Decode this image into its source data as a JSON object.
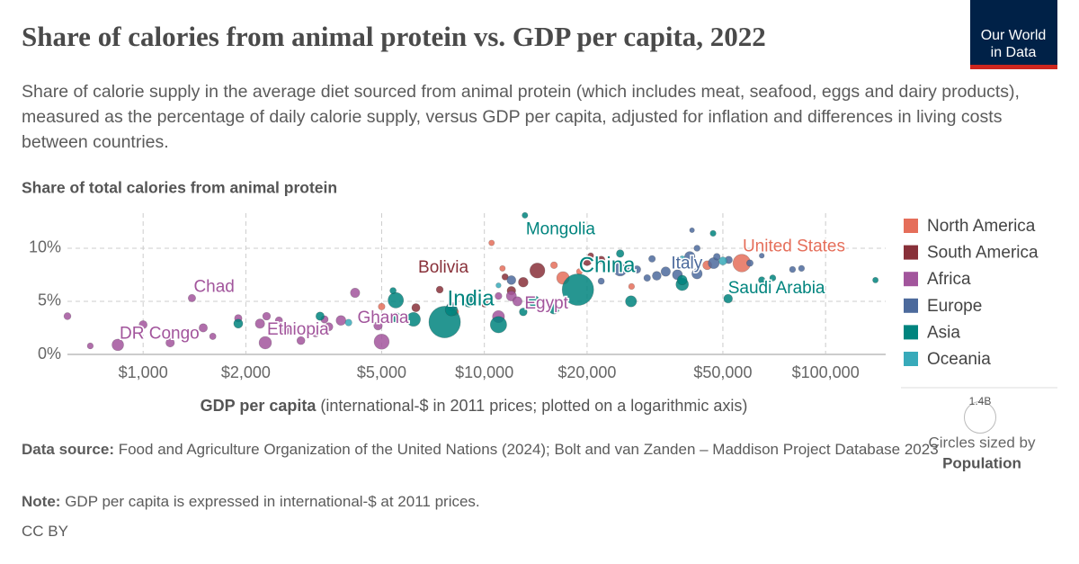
{
  "header": {
    "title": "Share of calories from animal protein vs. GDP per capita, 2022",
    "subtitle": "Share of calorie supply in the average diet sourced from animal protein (which includes meat, seafood, eggs and dairy products), measured as the percentage of daily calorie supply, versus GDP per capita, adjusted for inflation and differences in living costs between countries.",
    "logo": [
      "Our World",
      "in Data"
    ]
  },
  "chart_data": {
    "type": "scatter",
    "y_label": "Share of total calories from animal protein",
    "x_label": "GDP per capita",
    "x_label_note": "(international-$ in 2011 prices; plotted on a logarithmic axis)",
    "x_log": true,
    "grid": true,
    "legend_position": "right",
    "xlim": [
      600,
      150000
    ],
    "ylim": [
      0,
      13.3
    ],
    "xticks": [
      {
        "value": 1000,
        "label": "$1,000"
      },
      {
        "value": 2000,
        "label": "$2,000"
      },
      {
        "value": 5000,
        "label": "$5,000"
      },
      {
        "value": 10000,
        "label": "$10,000"
      },
      {
        "value": 20000,
        "label": "$20,000"
      },
      {
        "value": 50000,
        "label": "$50,000"
      },
      {
        "value": 100000,
        "label": "$100,000"
      }
    ],
    "yticks": [
      {
        "value": 0,
        "label": "0%"
      },
      {
        "value": 5,
        "label": "5%"
      },
      {
        "value": 10,
        "label": "10%"
      }
    ],
    "size_legend": {
      "value": 1400,
      "label": "1.4B"
    },
    "size_caption": "Circles sized by",
    "size_variable": "Population",
    "series": [
      {
        "name": "North America",
        "color": "#e56e5a",
        "x": [
          56800,
          45000,
          17000,
          19000,
          27000,
          10500,
          16000,
          5000,
          8200,
          11300
        ],
        "values": [
          8.6,
          8.4,
          7.2,
          7.8,
          6.4,
          10.5,
          8.4,
          4.5,
          4.0,
          8.1
        ],
        "sizes": [
          335,
          39,
          128,
          5,
          4.4,
          2.8,
          11,
          10,
          17,
          3
        ],
        "labels": [
          "United States",
          null,
          null,
          null,
          null,
          null,
          null,
          null,
          null,
          null
        ]
      },
      {
        "name": "South America",
        "color": "#883039",
        "x": [
          7400,
          14300,
          20000,
          13000,
          12000,
          22000,
          20500,
          11500,
          10000,
          6300
        ],
        "values": [
          6.1,
          7.9,
          8.8,
          6.8,
          6.0,
          8.9,
          9.3,
          7.3,
          4.8,
          4.4
        ],
        "sizes": [
          12,
          215,
          46,
          52,
          34,
          19,
          3.4,
          7,
          18,
          28
        ],
        "labels": [
          "Bolivia",
          null,
          null,
          null,
          null,
          null,
          null,
          null,
          null,
          null
        ]
      },
      {
        "name": "Africa",
        "color": "#a2559c",
        "x": [
          1390,
          4880,
          2280,
          843,
          11000,
          5000,
          3800,
          2600,
          2200,
          1500,
          1200,
          1000,
          2300,
          4180,
          2500,
          12000,
          8000,
          12500,
          11000,
          600,
          700,
          1600,
          3200,
          3400,
          3500,
          1900,
          2900
        ],
        "values": [
          5.3,
          2.7,
          1.1,
          0.9,
          3.56,
          1.2,
          3.2,
          2.3,
          2.9,
          2.5,
          1.1,
          2.8,
          3.6,
          5.8,
          3.2,
          5.5,
          4.5,
          5.0,
          5.5,
          3.6,
          0.8,
          1.7,
          2.0,
          3.3,
          2.6,
          3.4,
          1.3
        ],
        "sizes": [
          18,
          33,
          123,
          100,
          111,
          218,
          54,
          65,
          47,
          30,
          33,
          26,
          22,
          47,
          16,
          60,
          37,
          45,
          12,
          13,
          5,
          8,
          20,
          17,
          28,
          18,
          25
        ],
        "labels": [
          "Chad",
          "Ghana",
          "Ethiopia",
          "DR Congo",
          "Egypt",
          null,
          null,
          null,
          null,
          null,
          null,
          null,
          null,
          null,
          null,
          null,
          null,
          null,
          null,
          null,
          null,
          null,
          null,
          null,
          null,
          null,
          null
        ]
      },
      {
        "name": "Europe",
        "color": "#4c6a9c",
        "x": [
          36800,
          40000,
          47000,
          42000,
          34000,
          52000,
          80000,
          60000,
          25000,
          12000,
          32000,
          28000,
          26000,
          31000,
          48000,
          42000,
          85000,
          40600,
          22000,
          30000,
          65000
        ],
        "values": [
          7.5,
          9.2,
          8.6,
          7.6,
          7.8,
          8.9,
          8.0,
          8.6,
          8.0,
          7.0,
          7.4,
          8.0,
          8.2,
          9.0,
          9.2,
          10.0,
          8.1,
          11.7,
          6.9,
          7.2,
          9.3
        ],
        "sizes": [
          59,
          68,
          83,
          67,
          47,
          17,
          5.5,
          9,
          144,
          38,
          38,
          19,
          10,
          10,
          10,
          5.5,
          5,
          0.4,
          7,
          10,
          0.7
        ],
        "labels": [
          "Italy",
          null,
          null,
          null,
          null,
          null,
          null,
          null,
          null,
          null,
          null,
          null,
          null,
          null,
          null,
          null,
          null,
          null,
          null,
          null,
          null
        ]
      },
      {
        "name": "Asia",
        "color": "#00847e",
        "x": [
          13150,
          18800,
          7650,
          51800,
          11000,
          5500,
          6200,
          8000,
          9000,
          38000,
          38000,
          14000,
          26900,
          25000,
          140000,
          65000,
          46800,
          3300,
          5500,
          1900,
          13000,
          5600,
          16000,
          70000,
          5400
        ],
        "values": [
          13.1,
          6.1,
          3.05,
          5.25,
          2.8,
          5.1,
          3.3,
          4.2,
          5.0,
          6.6,
          7.0,
          5.0,
          5.0,
          9.5,
          7.0,
          7.0,
          11.4,
          3.6,
          3.5,
          2.9,
          4.0,
          3.3,
          4.3,
          7.2,
          6.0
        ],
        "sizes": [
          3.4,
          1410,
          1420,
          36,
          275,
          235,
          171,
          115,
          98,
          125,
          52,
          88,
          85,
          19,
          2.7,
          9.4,
          4.3,
          30,
          54,
          41,
          22,
          17,
          71,
          6,
          7
        ],
        "labels": [
          "Mongolia",
          "China",
          "India",
          "Saudi Arabia",
          null,
          null,
          null,
          null,
          null,
          null,
          null,
          null,
          null,
          null,
          null,
          null,
          null,
          null,
          null,
          null,
          null,
          null,
          null,
          null,
          null
        ]
      },
      {
        "name": "Oceania",
        "color": "#38aaba",
        "x": [
          50000,
          38000,
          11000,
          4000
        ],
        "values": [
          8.8,
          9.0,
          6.5,
          3.0
        ],
        "sizes": [
          26,
          5,
          0.9,
          10
        ],
        "labels": [
          null,
          null,
          null,
          null
        ]
      }
    ]
  },
  "footer": {
    "source_label": "Data source:",
    "source": "Food and Agriculture Organization of the United Nations (2024); Bolt and van Zanden – Maddison Project Database 2023",
    "note_label": "Note:",
    "note": "GDP per capita is expressed in international-$ at 2011 prices.",
    "license": "CC BY"
  }
}
